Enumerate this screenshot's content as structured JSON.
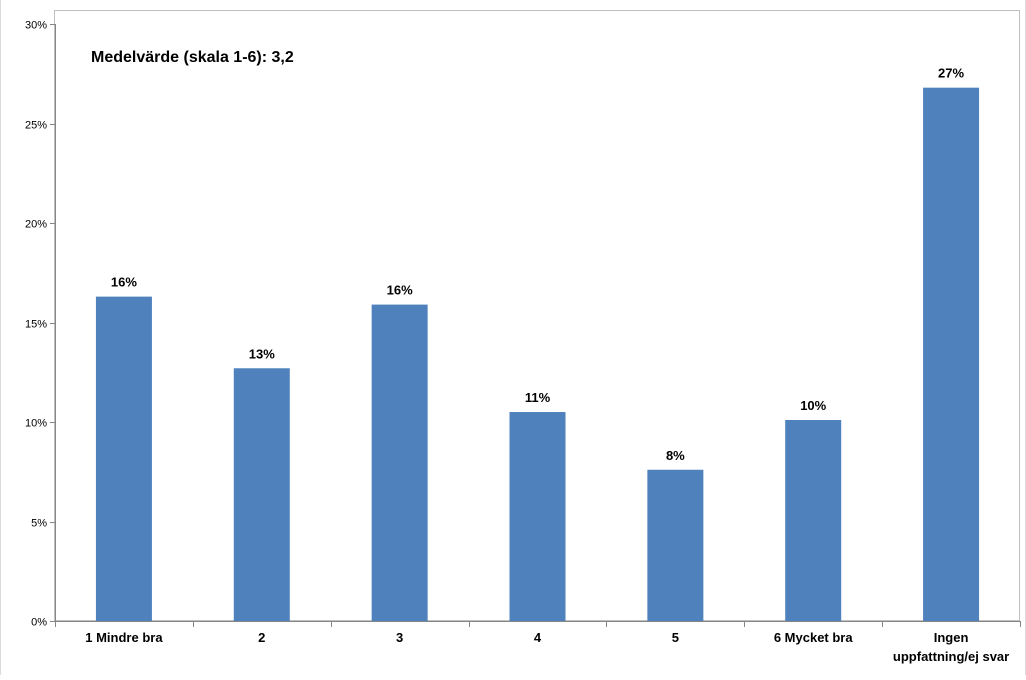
{
  "chart_data": {
    "type": "bar",
    "annotation": "Medelvärde (skala 1-6): 3,2",
    "categories": [
      [
        "1 Mindre bra"
      ],
      [
        "2"
      ],
      [
        "3"
      ],
      [
        "4"
      ],
      [
        "5"
      ],
      [
        "6 Mycket bra"
      ],
      [
        "Ingen",
        "uppfattning/ej svar"
      ]
    ],
    "values": [
      16.3,
      12.7,
      15.9,
      10.5,
      7.6,
      10.1,
      26.8
    ],
    "data_labels": [
      "16%",
      "13%",
      "16%",
      "11%",
      "8%",
      "10%",
      "27%"
    ],
    "ylim": [
      0,
      30
    ],
    "yticks": [
      0,
      5,
      10,
      15,
      20,
      25,
      30
    ],
    "ytick_labels": [
      "0%",
      "5%",
      "10%",
      "15%",
      "20%",
      "25%",
      "30%"
    ],
    "grid": false,
    "legend": "none",
    "colors": {
      "bar": "#4F81BD",
      "plot_border": "#C0C0C0",
      "axis": "#868686",
      "frame_outer": "#D9D9D9"
    }
  }
}
